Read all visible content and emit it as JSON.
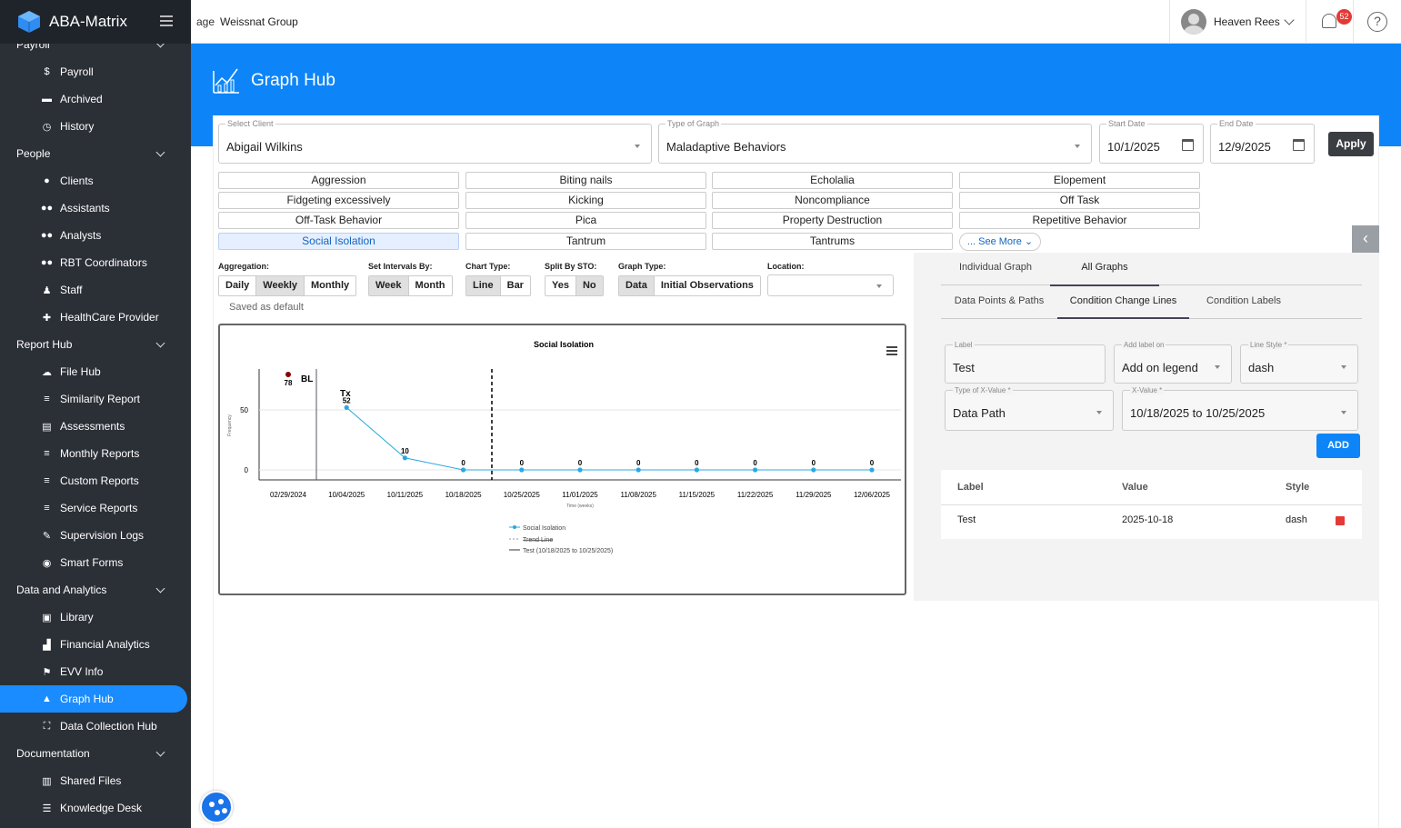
{
  "app": {
    "name": "ABA-Matrix",
    "org": "Weissnat Group",
    "broken_img_alt": "age"
  },
  "user": {
    "name": "Heaven Rees",
    "notifications": "52"
  },
  "sidebar": {
    "sections": [
      {
        "label": "Payroll",
        "items": [
          {
            "label": "Payroll",
            "icon": "payroll-icon"
          },
          {
            "label": "Archived",
            "icon": "archive-icon"
          },
          {
            "label": "History",
            "icon": "history-icon"
          }
        ]
      },
      {
        "label": "People",
        "items": [
          {
            "label": "Clients",
            "icon": "user-icon"
          },
          {
            "label": "Assistants",
            "icon": "users-icon"
          },
          {
            "label": "Analysts",
            "icon": "users-icon"
          },
          {
            "label": "RBT Coordinators",
            "icon": "users-icon"
          },
          {
            "label": "Staff",
            "icon": "staff-icon"
          },
          {
            "label": "HealthCare Provider",
            "icon": "medkit-icon"
          }
        ]
      },
      {
        "label": "Report Hub",
        "items": [
          {
            "label": "File Hub",
            "icon": "cloud-icon"
          },
          {
            "label": "Similarity Report",
            "icon": "report-icon"
          },
          {
            "label": "Assessments",
            "icon": "clipboard-icon"
          },
          {
            "label": "Monthly Reports",
            "icon": "report-icon"
          },
          {
            "label": "Custom Reports",
            "icon": "report-icon"
          },
          {
            "label": "Service Reports",
            "icon": "report-icon"
          },
          {
            "label": "Supervision Logs",
            "icon": "log-icon"
          },
          {
            "label": "Smart Forms",
            "icon": "bulb-icon"
          }
        ]
      },
      {
        "label": "Data and Analytics",
        "items": [
          {
            "label": "Library",
            "icon": "library-icon"
          },
          {
            "label": "Financial Analytics",
            "icon": "chart-icon"
          },
          {
            "label": "EVV Info",
            "icon": "evv-icon"
          },
          {
            "label": "Graph Hub",
            "icon": "graph-icon",
            "active": true
          },
          {
            "label": "Data Collection Hub",
            "icon": "hub-icon"
          }
        ]
      },
      {
        "label": "Documentation",
        "items": [
          {
            "label": "Shared Files",
            "icon": "files-icon"
          },
          {
            "label": "Knowledge Desk",
            "icon": "knowledge-icon"
          }
        ]
      }
    ]
  },
  "page": {
    "title": "Graph Hub"
  },
  "filters": {
    "client_label": "Select Client",
    "client_value": "Abigail Wilkins",
    "graph_type_label": "Type of Graph",
    "graph_type_value": "Maladaptive Behaviors",
    "start_label": "Start Date",
    "start_value": "10/1/2025",
    "end_label": "End Date",
    "end_value": "12/9/2025",
    "apply_label": "Apply"
  },
  "behaviors": [
    "Aggression",
    "Biting nails",
    "Echolalia",
    "Elopement",
    "Fidgeting excessively",
    "Kicking",
    "Noncompliance",
    "Off Task",
    "Off-Task Behavior",
    "Pica",
    "Property Destruction",
    "Repetitive Behavior",
    "Social Isolation",
    "Tantrum",
    "Tantrums"
  ],
  "selected_behavior": "Social Isolation",
  "see_more": "... See More",
  "controls": {
    "aggregation": {
      "label": "Aggregation:",
      "options": [
        "Daily",
        "Weekly",
        "Monthly"
      ],
      "selected": "Weekly"
    },
    "intervals": {
      "label": "Set Intervals By:",
      "options": [
        "Week",
        "Month"
      ],
      "selected": "Week"
    },
    "chart_type": {
      "label": "Chart Type:",
      "options": [
        "Line",
        "Bar"
      ],
      "selected": "Line"
    },
    "split_sto": {
      "label": "Split By STO:",
      "options": [
        "Yes",
        "No"
      ],
      "selected": "No"
    },
    "graph_type": {
      "label": "Graph Type:",
      "options": [
        "Data",
        "Initial Observations"
      ],
      "selected": "Data"
    },
    "location": {
      "label": "Location:",
      "value": ""
    },
    "saved_note": "Saved as default"
  },
  "chart_data": {
    "type": "line",
    "title": "Social Isolation",
    "ylabel": "Frequency",
    "xlabel": "Time (weeks)",
    "categories": [
      "02/29/2024",
      "10/04/2025",
      "10/11/2025",
      "10/18/2025",
      "10/25/2025",
      "11/01/2025",
      "11/08/2025",
      "11/15/2025",
      "11/22/2025",
      "11/29/2025",
      "12/06/2025"
    ],
    "yticks": [
      0,
      50
    ],
    "ylim": [
      0,
      80
    ],
    "baseline_point": {
      "x": "02/29/2024",
      "value": 78,
      "color": "#8b0000"
    },
    "series": [
      {
        "name": "Social Isolation",
        "color": "#29a8e0",
        "values": [
          null,
          52,
          10,
          0,
          0,
          0,
          0,
          0,
          0,
          0,
          0
        ]
      }
    ],
    "phase_labels": [
      {
        "text": "BL"
      },
      {
        "text": "Tx"
      }
    ],
    "condition_line": {
      "at": "10/18/2025 to 10/25/2025",
      "style": "dash"
    },
    "legend": [
      "Social Isolation",
      "Trend Line",
      "Test (10/18/2025 to 10/25/2025)"
    ]
  },
  "right_panel": {
    "tabs": [
      "Individual Graph",
      "All Graphs"
    ],
    "active_tab": "All Graphs",
    "subtabs": [
      "Data Points & Paths",
      "Condition Change Lines",
      "Condition Labels"
    ],
    "active_subtab": "Condition Change Lines",
    "form": {
      "label_label": "Label",
      "label_value": "Test",
      "add_on_label": "Add label on",
      "add_on_value": "Add on legend",
      "line_style_label": "Line Style *",
      "line_style_value": "dash",
      "xtype_label": "Type of X-Value *",
      "xtype_value": "Data Path",
      "xvalue_label": "X-Value *",
      "xvalue_value": "10/18/2025 to 10/25/2025",
      "add_button": "ADD"
    },
    "table": {
      "headers": [
        "Label",
        "Value",
        "Style"
      ],
      "rows": [
        {
          "label": "Test",
          "value": "2025-10-18",
          "style": "dash"
        }
      ]
    }
  }
}
